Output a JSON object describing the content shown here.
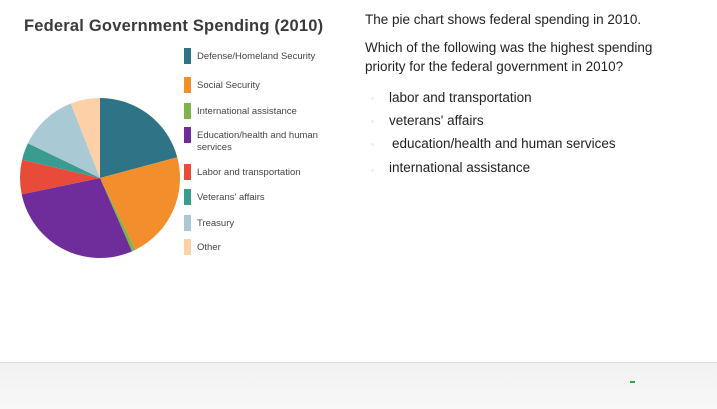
{
  "chart_data": {
    "type": "pie",
    "title": "Federal Government Spending (2010)",
    "slices": [
      {
        "label": "Defense/Homeland Security",
        "value": 21,
        "color": "#2e7486"
      },
      {
        "label": "Social Security",
        "value": 22,
        "color": "#f28e2b"
      },
      {
        "label": "International assistance",
        "value": 0.8,
        "color": "#7fb44c"
      },
      {
        "label": "Education/health and human services",
        "value": 28.5,
        "color": "#6f2c9b"
      },
      {
        "label": "Labor and transportation",
        "value": 7,
        "color": "#e84b3a"
      },
      {
        "label": "Veterans' affairs",
        "value": 3.5,
        "color": "#3a9b8f"
      },
      {
        "label": "Treasury",
        "value": 12,
        "color": "#a9c9d4"
      },
      {
        "label": "Other",
        "value": 6,
        "color": "#fdd0a7"
      }
    ],
    "legend": "right"
  },
  "question": {
    "intro": "The pie chart shows federal spending in 2010.",
    "prompt": "Which of the following was the highest spending priority for the federal government in 2010?"
  },
  "options": [
    "labor and transportation",
    "veterans' affairs",
    "education/health and human services",
    "international assistance"
  ]
}
